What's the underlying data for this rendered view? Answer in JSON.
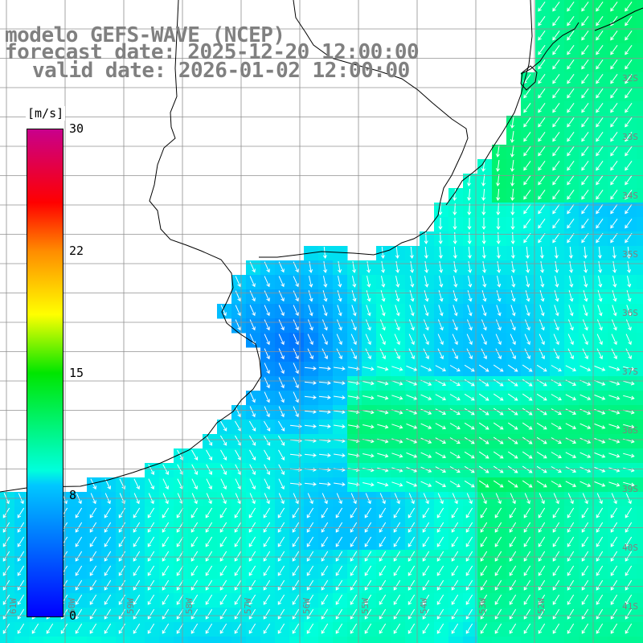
{
  "title": {
    "line1": "modelo GEFS-WAVE (NCEP)",
    "line2": "forecast date: 2025-12-20 12:00:00",
    "line3": "valid date: 2026-01-02 12:00:00"
  },
  "colorbar": {
    "unit": "[m/s]",
    "min": 0,
    "max": 30,
    "ticks": [
      "30",
      "22",
      "15",
      "8",
      "0"
    ],
    "tick_values": [
      30,
      22,
      15,
      8,
      0
    ],
    "colors": [
      "#0000ff",
      "#00c8ff",
      "#00ffdc",
      "#00e600",
      "#ffff00",
      "#ff8c00",
      "#ff0000",
      "#c8008c"
    ]
  },
  "map": {
    "lat_labels": [
      "32S",
      "33S",
      "34S",
      "35S",
      "36S",
      "37S",
      "38S",
      "39S",
      "40S",
      "41S"
    ],
    "lon_labels": [
      "61W",
      "60W",
      "59W",
      "58W",
      "57W",
      "56W",
      "55W",
      "54W",
      "53W",
      "52W"
    ],
    "colors": {
      "land": "#ffffff",
      "coast": "#000000",
      "grid": "#a0a0a0",
      "arrow": "#ffffff"
    }
  }
}
